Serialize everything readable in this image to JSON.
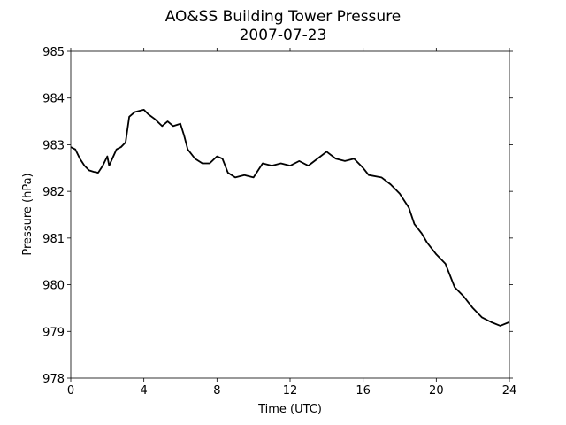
{
  "chart_data": {
    "type": "line",
    "title": "AO&SS Building Tower Pressure",
    "subtitle": "2007-07-23",
    "xlabel": "Time (UTC)",
    "ylabel": "Pressure (hPa)",
    "x": [
      0,
      0.25,
      0.5,
      0.75,
      1.0,
      1.25,
      1.5,
      1.75,
      2.0,
      2.1,
      2.5,
      2.75,
      3.0,
      3.2,
      3.5,
      4.0,
      4.25,
      4.6,
      5.0,
      5.3,
      5.6,
      6.0,
      6.2,
      6.4,
      6.8,
      7.2,
      7.6,
      8.0,
      8.3,
      8.6,
      9.0,
      9.5,
      10.0,
      10.5,
      11.0,
      11.5,
      12.0,
      12.5,
      13.0,
      13.5,
      14.0,
      14.5,
      15.0,
      15.5,
      16.0,
      16.3,
      17.0,
      17.5,
      18.0,
      18.5,
      18.8,
      19.2,
      19.5,
      20.0,
      20.5,
      21.0,
      21.5,
      22.0,
      22.5,
      23.0,
      23.5,
      24.0
    ],
    "series": [
      {
        "name": "Pressure",
        "color": "#000000",
        "values": [
          982.95,
          982.9,
          982.7,
          982.55,
          982.45,
          982.42,
          982.4,
          982.55,
          982.75,
          982.55,
          982.9,
          982.95,
          983.05,
          983.6,
          983.7,
          983.75,
          983.65,
          983.55,
          983.4,
          983.5,
          983.4,
          983.45,
          983.2,
          982.9,
          982.7,
          982.6,
          982.6,
          982.75,
          982.7,
          982.4,
          982.3,
          982.35,
          982.3,
          982.6,
          982.55,
          982.6,
          982.55,
          982.65,
          982.55,
          982.7,
          982.85,
          982.7,
          982.65,
          982.7,
          982.5,
          982.35,
          982.3,
          982.15,
          981.95,
          981.65,
          981.3,
          981.1,
          980.9,
          980.65,
          980.45,
          979.95,
          979.75,
          979.5,
          979.3,
          979.2,
          979.12,
          979.2
        ]
      }
    ],
    "xlim": [
      0,
      24
    ],
    "xticks": [
      0,
      4,
      8,
      12,
      16,
      20,
      24
    ],
    "ylim": [
      978,
      985
    ],
    "yticks": [
      978,
      979,
      980,
      981,
      982,
      983,
      984,
      985
    ]
  }
}
